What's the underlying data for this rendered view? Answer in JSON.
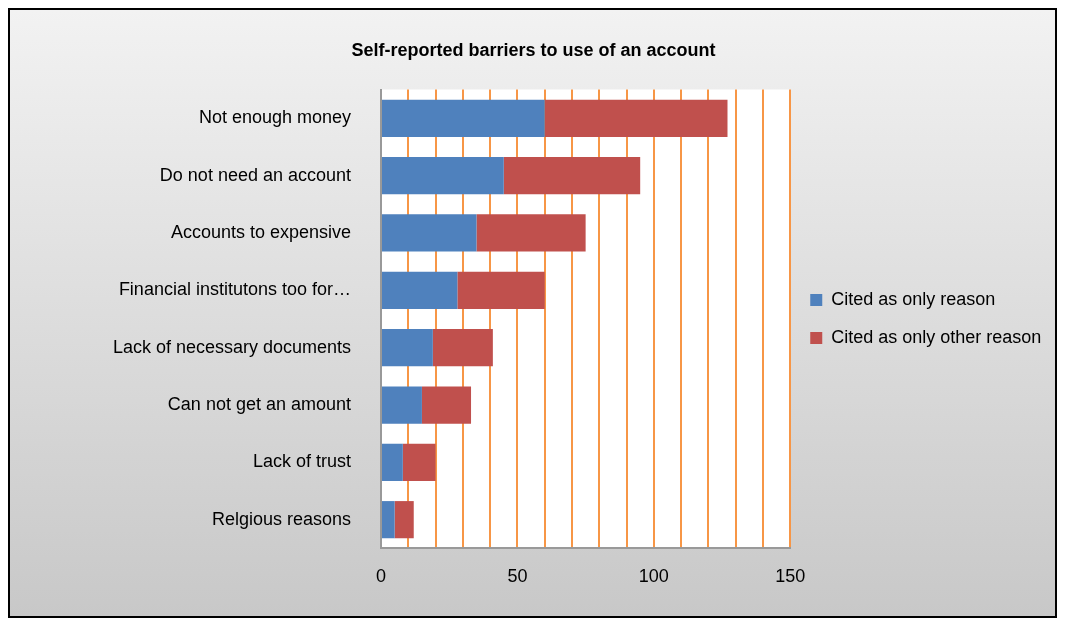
{
  "chart_data": {
    "type": "bar",
    "orientation": "horizontal",
    "stacked": true,
    "title": "Self-reported barriers to use of an account",
    "categories": [
      "Not enough money",
      "Do not need an account",
      "Accounts to expensive",
      "Financial institutons too for…",
      "Lack of necessary documents",
      "Can not get an amount",
      "Lack of trust",
      "Relgious reasons"
    ],
    "series": [
      {
        "name": "Cited as only reason",
        "color": "#4f81bd",
        "values": [
          60,
          45,
          35,
          28,
          19,
          15,
          8,
          5
        ]
      },
      {
        "name": "Cited as only other reason",
        "color": "#c0504d",
        "values": [
          67,
          50,
          40,
          32,
          22,
          18,
          12,
          7
        ]
      }
    ],
    "xlim": [
      0,
      150
    ],
    "xticks": [
      0,
      {
        "value": 10,
        "label": null
      },
      {
        "value": 20,
        "label": null
      },
      {
        "value": 30,
        "label": null
      },
      {
        "value": 40,
        "label": null
      },
      50,
      {
        "value": 60,
        "label": null
      },
      {
        "value": 70,
        "label": null
      },
      {
        "value": 80,
        "label": null
      },
      {
        "value": 90,
        "label": null
      },
      100,
      {
        "value": 110,
        "label": null
      },
      {
        "value": 120,
        "label": null
      },
      {
        "value": 130,
        "label": null
      },
      {
        "value": 140,
        "label": null
      },
      150
    ],
    "grid": "x",
    "legend": "right"
  }
}
